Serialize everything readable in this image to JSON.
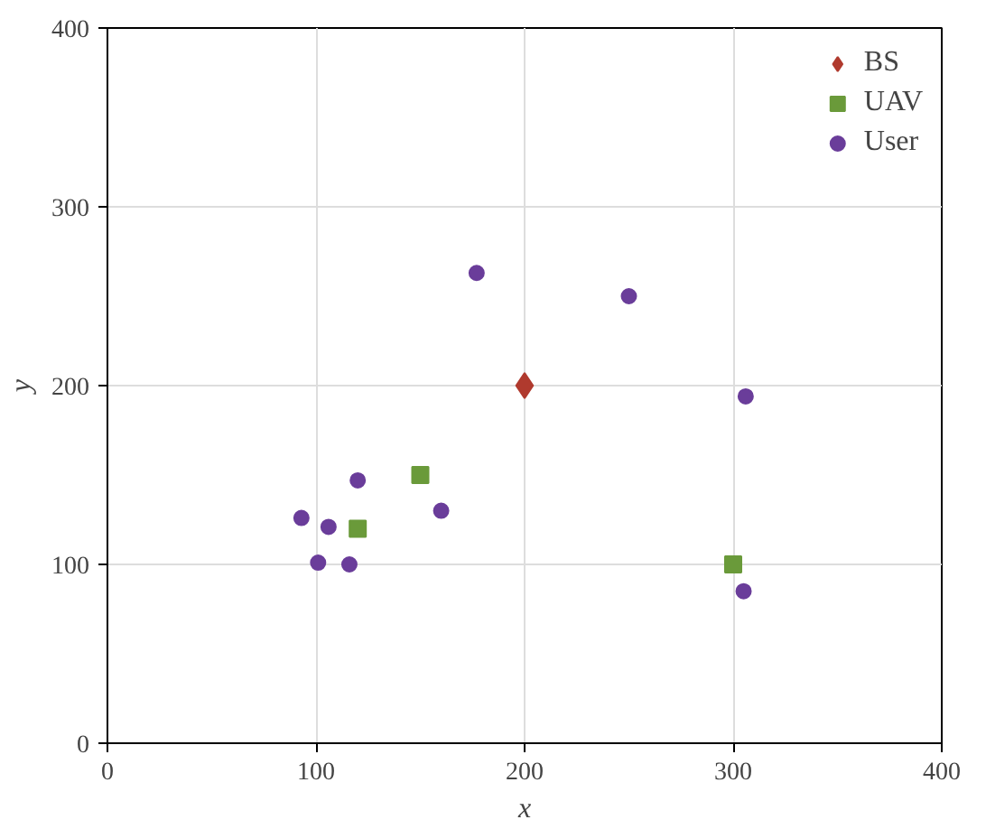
{
  "chart_data": {
    "type": "scatter",
    "xlabel": "x",
    "ylabel": "y",
    "xlim": [
      0,
      400
    ],
    "ylim": [
      0,
      400
    ],
    "xticks": [
      0,
      100,
      200,
      300,
      400
    ],
    "yticks": [
      0,
      100,
      200,
      300,
      400
    ],
    "grid": true,
    "legend": "top right",
    "series": [
      {
        "name": "BS",
        "color": "#b03a2e",
        "marker": "diamond",
        "x": [
          200
        ],
        "values": [
          200
        ]
      },
      {
        "name": "UAV",
        "color": "#6a9a3a",
        "marker": "square",
        "x": [
          150,
          120,
          300
        ],
        "values": [
          150,
          120,
          100
        ]
      },
      {
        "name": "User",
        "color": "#6a3d9a",
        "marker": "circle",
        "x": [
          177,
          250,
          306,
          120,
          93,
          106,
          160,
          101,
          116,
          305
        ],
        "values": [
          263,
          250,
          194,
          147,
          126,
          121,
          130,
          101,
          100,
          85
        ]
      }
    ]
  }
}
